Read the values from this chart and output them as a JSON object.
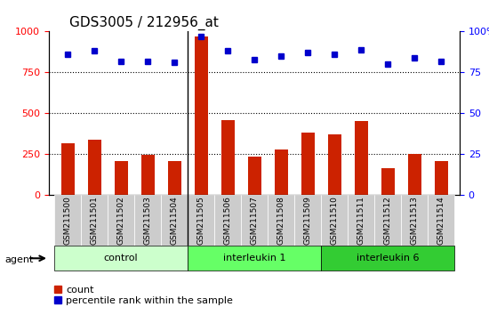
{
  "title": "GDS3005 / 212956_at",
  "samples": [
    "GSM211500",
    "GSM211501",
    "GSM211502",
    "GSM211503",
    "GSM211504",
    "GSM211505",
    "GSM211506",
    "GSM211507",
    "GSM211508",
    "GSM211509",
    "GSM211510",
    "GSM211511",
    "GSM211512",
    "GSM211513",
    "GSM211514"
  ],
  "counts": [
    320,
    340,
    210,
    245,
    210,
    970,
    460,
    235,
    280,
    385,
    370,
    455,
    165,
    250,
    210
  ],
  "percentiles": [
    86,
    88,
    82,
    82,
    81,
    97,
    88,
    83,
    85,
    87,
    86,
    89,
    80,
    84,
    82
  ],
  "groups": [
    {
      "label": "control",
      "start": 0,
      "end": 5,
      "color": "#ccffcc"
    },
    {
      "label": "interleukin 1",
      "start": 5,
      "end": 10,
      "color": "#66ff66"
    },
    {
      "label": "interleukin 6",
      "start": 10,
      "end": 15,
      "color": "#33cc33"
    }
  ],
  "bar_color": "#cc2200",
  "dot_color": "#0000cc",
  "left_ylim": [
    0,
    1000
  ],
  "right_ylim": [
    0,
    100
  ],
  "left_yticks": [
    0,
    250,
    500,
    750,
    1000
  ],
  "right_yticks": [
    0,
    25,
    50,
    75,
    100
  ],
  "right_yticklabels": [
    "0",
    "25",
    "50",
    "75",
    "100%"
  ],
  "grid_values": [
    250,
    500,
    750
  ],
  "tick_label_bg": "#cccccc",
  "agent_label": "agent",
  "legend_count_label": "count",
  "legend_pct_label": "percentile rank within the sample"
}
